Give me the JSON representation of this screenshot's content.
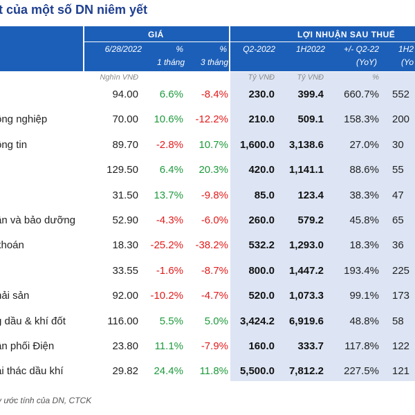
{
  "title": "t của một số DN niêm yết",
  "header": {
    "group_gia": "GIÁ",
    "group_loi_nhuan": "LỢI NHUẬN SAU THUẾ",
    "col_date": "6/28/2022",
    "col_pct1_a": "%",
    "col_pct1_b": "1 tháng",
    "col_pct3_a": "%",
    "col_pct3_b": "3 tháng",
    "col_q2": "Q2-2022",
    "col_1h": "1H2022",
    "col_yoy_a": "+/- Q2-22",
    "col_yoy_b": "(YoY)",
    "col_last_a": "1H2",
    "col_last_b": "(Yo"
  },
  "subheader": {
    "price_unit": "Nghìn VNĐ",
    "q2_unit": "Tỷ VNĐ",
    "h1_unit": "Tỷ VNĐ",
    "yoy_unit": "%"
  },
  "rows": [
    {
      "name": "",
      "price": "94.00",
      "m1": "6.6%",
      "m3": "-8.4%",
      "q2": "230.0",
      "h1": "399.4",
      "yoy": "660.7%",
      "last": "552"
    },
    {
      "name": "ông nghiệp",
      "price": "70.00",
      "m1": "10.6%",
      "m3": "-12.2%",
      "q2": "210.0",
      "h1": "509.1",
      "yoy": "158.3%",
      "last": "200"
    },
    {
      "name": "ông tin",
      "price": "89.70",
      "m1": "-2.8%",
      "m3": "10.7%",
      "q2": "1,600.0",
      "h1": "3,138.6",
      "yoy": "27.0%",
      "last": "30"
    },
    {
      "name": "",
      "price": "129.50",
      "m1": "6.4%",
      "m3": "20.3%",
      "q2": "420.0",
      "h1": "1,141.1",
      "yoy": "88.6%",
      "last": "55"
    },
    {
      "name": "",
      "price": "31.50",
      "m1": "13.7%",
      "m3": "-9.8%",
      "q2": "85.0",
      "h1": "123.4",
      "yoy": "38.3%",
      "last": "47"
    },
    {
      "name": "ần và bảo dưỡng",
      "price": "52.90",
      "m1": "-4.3%",
      "m3": "-6.0%",
      "q2": "260.0",
      "h1": "579.2",
      "yoy": "45.8%",
      "last": "65"
    },
    {
      "name": "khoán",
      "price": "18.30",
      "m1": "-25.2%",
      "m3": "-38.2%",
      "q2": "532.2",
      "h1": "1,293.0",
      "yoy": "18.3%",
      "last": "36"
    },
    {
      "name": "",
      "price": "33.55",
      "m1": "-1.6%",
      "m3": "-8.7%",
      "q2": "800.0",
      "h1": "1,447.2",
      "yoy": "193.4%",
      "last": "225"
    },
    {
      "name": "hải sản",
      "price": "92.00",
      "m1": "-10.2%",
      "m3": "-4.7%",
      "q2": "520.0",
      "h1": "1,073.3",
      "yoy": "99.1%",
      "last": "173"
    },
    {
      "name": "g dầu & khí đốt",
      "price": "116.00",
      "m1": "5.5%",
      "m3": "5.0%",
      "q2": "3,424.2",
      "h1": "6,919.6",
      "yoy": "48.8%",
      "last": "58"
    },
    {
      "name": "ân phối Điện",
      "price": "23.80",
      "m1": "11.1%",
      "m3": "-7.9%",
      "q2": "160.0",
      "h1": "333.7",
      "yoy": "117.8%",
      "last": "122"
    },
    {
      "name": "ai thác dầu khí",
      "price": "29.82",
      "m1": "24.4%",
      "m3": "11.8%",
      "q2": "5,500.0",
      "h1": "7,812.2",
      "yoy": "227.5%",
      "last": "121"
    }
  ],
  "colors": {
    "header_bg": "#1c5fb8",
    "title": "#1f3f8f",
    "positive": "#1e9a3c",
    "negative": "#e11b1b",
    "shade": "#dde5f4"
  },
  "footnote": "y ước tính của DN, CTCK"
}
